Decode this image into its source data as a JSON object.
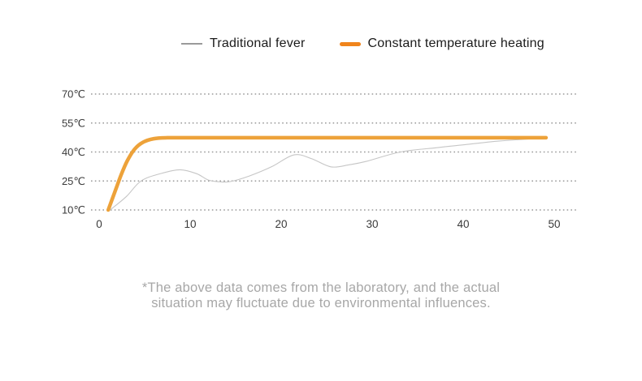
{
  "page": {
    "background": "#ffffff"
  },
  "legend": {
    "items": [
      {
        "label": "Traditional fever",
        "swatch": "thin-gray-line",
        "color": "#9a9a9a"
      },
      {
        "label": "Constant temperature heating",
        "swatch": "thick-orange-rounded-line",
        "color": "#f0841b"
      }
    ]
  },
  "chart_data": {
    "type": "line",
    "title": "",
    "xlabel": "",
    "ylabel": "",
    "x_ticks": [
      0,
      10,
      20,
      30,
      40,
      50
    ],
    "y_ticks": [
      {
        "value": 10,
        "label": "10℃"
      },
      {
        "value": 25,
        "label": "25℃"
      },
      {
        "value": 40,
        "label": "40℃"
      },
      {
        "value": 55,
        "label": "55℃"
      },
      {
        "value": 70,
        "label": "70℃"
      }
    ],
    "xlim": [
      0,
      50
    ],
    "ylim": [
      10,
      70
    ],
    "grid": "horizontal-dotted",
    "grid_color": "#999999",
    "axis_label_color": "#3a3a3a",
    "legend_position": "top-center",
    "series": [
      {
        "name": "Traditional fever",
        "color": "#c6c6c6",
        "width": 1.1,
        "points": [
          [
            1.2,
            10
          ],
          [
            3,
            17
          ],
          [
            4.6,
            25
          ],
          [
            6.8,
            28.9
          ],
          [
            8.9,
            30.8
          ],
          [
            10.7,
            28.8
          ],
          [
            12,
            25.5
          ],
          [
            13.2,
            24.6
          ],
          [
            14.4,
            24.7
          ],
          [
            16.5,
            27.6
          ],
          [
            19,
            32.5
          ],
          [
            21.4,
            38.5
          ],
          [
            23.3,
            36.6
          ],
          [
            25.5,
            32.3
          ],
          [
            27.5,
            33.4
          ],
          [
            29.3,
            35.1
          ],
          [
            33.1,
            40
          ],
          [
            37,
            42.2
          ],
          [
            40,
            43.7
          ],
          [
            44,
            45.7
          ],
          [
            49.1,
            47.3
          ]
        ]
      },
      {
        "name": "Constant temperature heating",
        "color": "#eda23a",
        "width": 4.5,
        "points": [
          [
            1,
            10
          ],
          [
            1.7,
            19
          ],
          [
            2.4,
            28
          ],
          [
            3.1,
            35.5
          ],
          [
            3.9,
            41.5
          ],
          [
            4.8,
            45
          ],
          [
            6,
            46.9
          ],
          [
            7.5,
            47.4
          ],
          [
            10,
            47.4
          ],
          [
            25,
            47.4
          ],
          [
            49.1,
            47.4
          ]
        ]
      }
    ]
  },
  "footnote": {
    "line1": "*The above data comes from the laboratory, and the actual",
    "line2": "situation may fluctuate due to environmental influences."
  }
}
